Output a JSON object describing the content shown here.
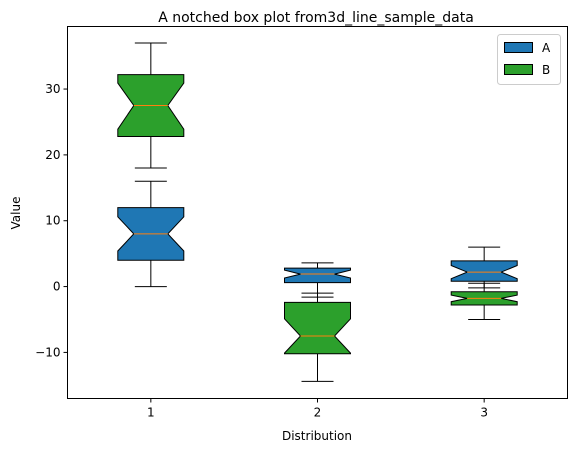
{
  "chart_data": {
    "type": "boxplot",
    "title": "A notched box plot from3d_line_sample_data",
    "xlabel": "Distribution",
    "ylabel": "Value",
    "categories": [
      "1",
      "2",
      "3"
    ],
    "ylim": [
      -17,
      39.5
    ],
    "yticks": [
      -10,
      0,
      10,
      20,
      30
    ],
    "yticklabels": [
      "−10",
      "0",
      "10",
      "20",
      "30"
    ],
    "legend_position": "top-right",
    "colors": {
      "A": "#1f77b4",
      "B": "#2ca02c",
      "median": "#ff7f0e",
      "edge": "#000000"
    },
    "series": [
      {
        "name": "A",
        "boxes": [
          {
            "whisker_low": 0.0,
            "q1": 4.0,
            "median": 8.0,
            "q3": 12.0,
            "whisker_high": 16.0,
            "notch_low": 5.4,
            "notch_high": 10.6
          },
          {
            "whisker_low": -1.6,
            "q1": 0.6,
            "median": 1.9,
            "q3": 2.8,
            "whisker_high": 3.6,
            "notch_low": 1.3,
            "notch_high": 2.5
          },
          {
            "whisker_low": -0.2,
            "q1": 0.8,
            "median": 2.2,
            "q3": 3.9,
            "whisker_high": 6.0,
            "notch_low": 1.2,
            "notch_high": 3.2
          }
        ]
      },
      {
        "name": "B",
        "boxes": [
          {
            "whisker_low": 18.0,
            "q1": 22.8,
            "median": 27.5,
            "q3": 32.2,
            "whisker_high": 37.0,
            "notch_low": 23.9,
            "notch_high": 30.9
          },
          {
            "whisker_low": -14.4,
            "q1": -10.2,
            "median": -7.5,
            "q3": -2.4,
            "whisker_high": -1.0,
            "notch_low": -10.1,
            "notch_high": -4.9
          },
          {
            "whisker_low": -5.0,
            "q1": -2.8,
            "median": -1.8,
            "q3": -0.8,
            "whisker_high": 0.5,
            "notch_low": -2.3,
            "notch_high": -1.3
          }
        ]
      }
    ]
  }
}
